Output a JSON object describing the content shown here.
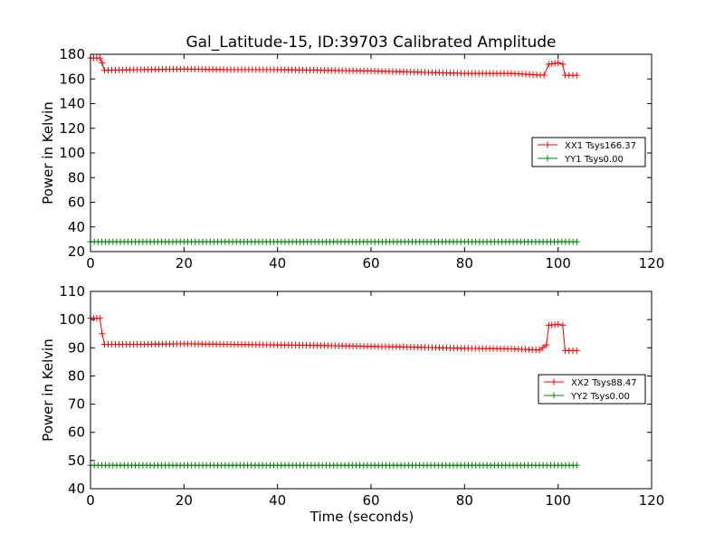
{
  "title": "Gal_Latitude-15, ID:39703 Calibrated Amplitude",
  "colors": {
    "xx": "#ff0000",
    "yy": "#008000"
  },
  "chart_data": [
    {
      "type": "line",
      "xlabel": "",
      "ylabel": "Power in Kelvin",
      "xlim": [
        0,
        120
      ],
      "ylim": [
        20,
        180
      ],
      "xticks": [
        0,
        20,
        40,
        60,
        80,
        100,
        120
      ],
      "yticks": [
        20,
        40,
        60,
        80,
        100,
        120,
        140,
        160,
        180
      ],
      "legend_position": "right",
      "series": [
        {
          "name": "XX1 Tsys166.37",
          "color": "#ff0000",
          "marker": "+",
          "x": [
            0,
            2,
            2.5,
            3,
            10,
            20,
            30,
            40,
            50,
            60,
            70,
            80,
            90,
            97,
            98,
            100,
            101,
            101.5,
            104
          ],
          "y": [
            177,
            177,
            173,
            167,
            167.5,
            168,
            167.5,
            167.5,
            167,
            166.5,
            165.5,
            164.5,
            164.5,
            163,
            172,
            173,
            172,
            163,
            163
          ]
        },
        {
          "name": "YY1 Tsys0.00",
          "color": "#008000",
          "marker": "+",
          "x": [
            0,
            104
          ],
          "y": [
            28,
            28
          ]
        }
      ]
    },
    {
      "type": "line",
      "xlabel": "Time (seconds)",
      "ylabel": "Power in Kelvin",
      "xlim": [
        0,
        120
      ],
      "ylim": [
        40,
        110
      ],
      "xticks": [
        0,
        20,
        40,
        60,
        80,
        100,
        120
      ],
      "yticks": [
        40,
        50,
        60,
        70,
        80,
        90,
        100,
        110
      ],
      "legend_position": "right",
      "series": [
        {
          "name": "XX2 Tsys88.47",
          "color": "#ff0000",
          "marker": "+",
          "x": [
            0,
            2,
            2.5,
            3,
            10,
            20,
            30,
            40,
            50,
            60,
            70,
            80,
            90,
            96,
            97.5,
            98,
            100,
            101,
            101.5,
            104
          ],
          "y": [
            100.5,
            100.5,
            95,
            91.2,
            91.2,
            91.4,
            91.2,
            91,
            90.8,
            90.5,
            90.2,
            89.8,
            89.6,
            89.2,
            91,
            98,
            98.3,
            98,
            89,
            89
          ]
        },
        {
          "name": "YY2 Tsys0.00",
          "color": "#008000",
          "marker": "+",
          "x": [
            0,
            104
          ],
          "y": [
            48.3,
            48.3
          ]
        }
      ]
    }
  ]
}
